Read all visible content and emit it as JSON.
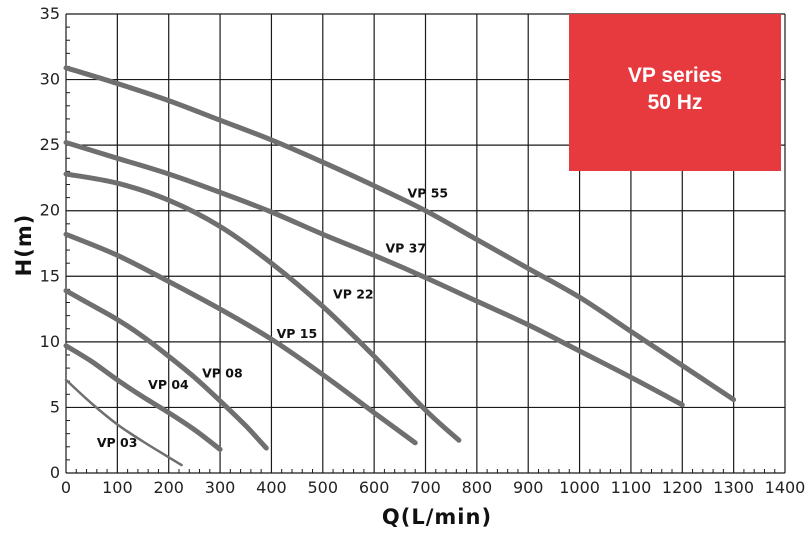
{
  "chart_data": {
    "type": "line",
    "xlabel": "Q(L/min)",
    "ylabel": "H(m)",
    "xlim": [
      0,
      1400
    ],
    "ylim": [
      0,
      35
    ],
    "x_ticks": [
      "0",
      "100",
      "200",
      "300",
      "400",
      "500",
      "600",
      "700",
      "800",
      "900",
      "1000",
      "1100",
      "1200",
      "1300",
      "1400"
    ],
    "y_ticks": [
      "0",
      "5",
      "10",
      "15",
      "20",
      "25",
      "30",
      "35"
    ],
    "grid": true,
    "badge": {
      "line1": "VP series",
      "line2": "50 Hz",
      "color": "#e63a3f"
    },
    "series": [
      {
        "name": "VP 03",
        "x": [
          0,
          50,
          100,
          150,
          200,
          225
        ],
        "y": [
          7.1,
          5.3,
          3.7,
          2.4,
          1.2,
          0.6
        ]
      },
      {
        "name": "VP 04",
        "x": [
          0,
          50,
          100,
          150,
          200,
          250,
          300
        ],
        "y": [
          9.7,
          8.5,
          7.1,
          5.8,
          4.6,
          3.3,
          1.8
        ]
      },
      {
        "name": "VP 08",
        "x": [
          0,
          50,
          100,
          150,
          200,
          250,
          300,
          350,
          390
        ],
        "y": [
          13.9,
          12.8,
          11.7,
          10.4,
          8.9,
          7.3,
          5.5,
          3.6,
          1.9
        ]
      },
      {
        "name": "VP 15",
        "x": [
          0,
          100,
          200,
          300,
          400,
          500,
          600,
          680
        ],
        "y": [
          18.2,
          16.6,
          14.6,
          12.5,
          10.2,
          7.5,
          4.6,
          2.3
        ]
      },
      {
        "name": "VP 22",
        "x": [
          0,
          100,
          200,
          300,
          400,
          500,
          600,
          700,
          765
        ],
        "y": [
          22.8,
          22.1,
          20.8,
          18.8,
          16.0,
          12.7,
          8.9,
          4.8,
          2.5
        ]
      },
      {
        "name": "VP 37",
        "x": [
          0,
          100,
          200,
          300,
          400,
          500,
          600,
          700,
          800,
          900,
          1000,
          1100,
          1200
        ],
        "y": [
          25.2,
          24.0,
          22.8,
          21.4,
          19.9,
          18.2,
          16.6,
          14.9,
          13.1,
          11.3,
          9.3,
          7.3,
          5.2
        ]
      },
      {
        "name": "VP 55",
        "x": [
          0,
          100,
          200,
          300,
          400,
          500,
          600,
          700,
          800,
          900,
          1000,
          1100,
          1200,
          1300
        ],
        "y": [
          30.9,
          29.7,
          28.4,
          26.9,
          25.4,
          23.7,
          21.9,
          20.0,
          17.8,
          15.6,
          13.4,
          10.8,
          8.2,
          5.6
        ]
      }
    ]
  }
}
